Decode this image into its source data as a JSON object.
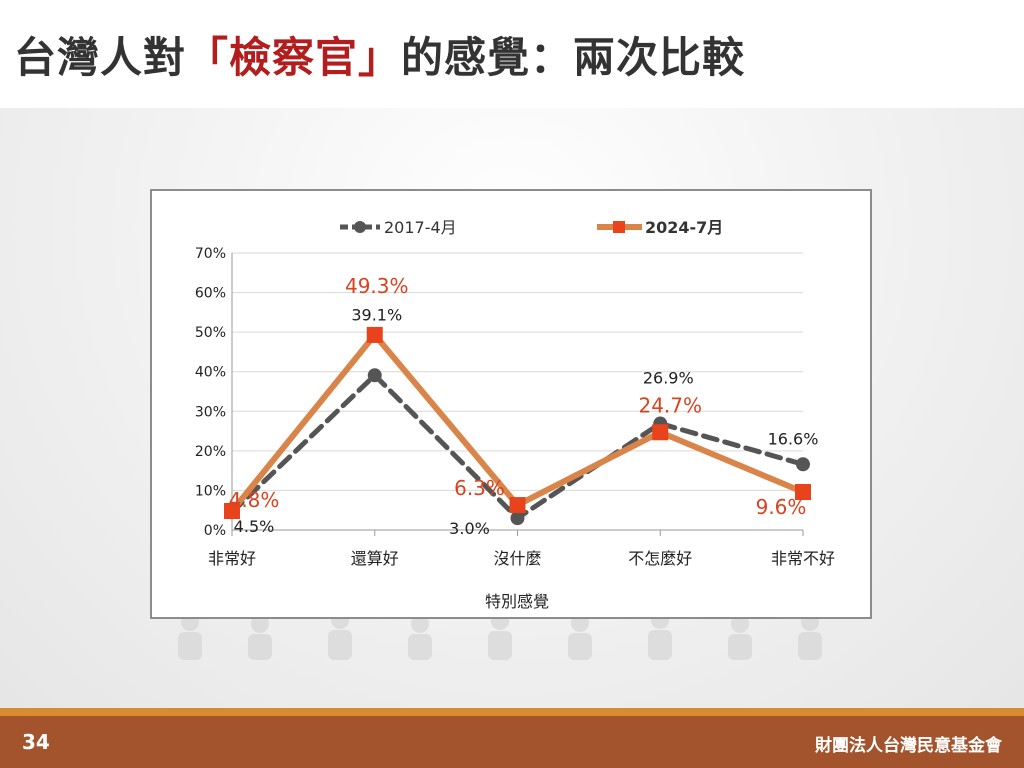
{
  "slide": {
    "title_prefix": "台灣人對",
    "title_highlight": "「檢察官」",
    "title_suffix": "的感覺：兩次比較",
    "page_number": "34",
    "organization": "財團法人台灣民意基金會"
  },
  "colors": {
    "title_text": "#333333",
    "title_highlight": "#b31d1d",
    "series_2017": "#555555",
    "series_2024_line": "#d9854a",
    "series_2024_marker": "#e8431a",
    "label_2024": "#d9431e",
    "footer_bg": "#a3542c",
    "footer_accent": "#d98b2f"
  },
  "chart_data": {
    "type": "line",
    "categories": [
      "非常好",
      "還算好",
      "沒什麼",
      "不怎麼好",
      "非常不好"
    ],
    "xlabel": "特別感覺",
    "ylabel": "",
    "ylim": [
      0,
      70
    ],
    "yticks": [
      0,
      10,
      20,
      30,
      40,
      50,
      60,
      70
    ],
    "ytick_labels": [
      "0%",
      "10%",
      "20%",
      "30%",
      "40%",
      "50%",
      "60%",
      "70%"
    ],
    "grid": true,
    "legend_position": "top",
    "series": [
      {
        "name": "2017-4月",
        "values": [
          4.5,
          39.1,
          3.0,
          26.9,
          16.6
        ],
        "labels": [
          "4.5%",
          "39.1%",
          "3.0%",
          "26.9%",
          "16.6%"
        ],
        "style": "dashed",
        "marker": "circle"
      },
      {
        "name": "2024-7月",
        "values": [
          4.8,
          49.3,
          6.3,
          24.7,
          9.6
        ],
        "labels": [
          "4.8%",
          "49.3%",
          "6.3%",
          "24.7%",
          "9.6%"
        ],
        "style": "solid",
        "marker": "square"
      }
    ]
  }
}
